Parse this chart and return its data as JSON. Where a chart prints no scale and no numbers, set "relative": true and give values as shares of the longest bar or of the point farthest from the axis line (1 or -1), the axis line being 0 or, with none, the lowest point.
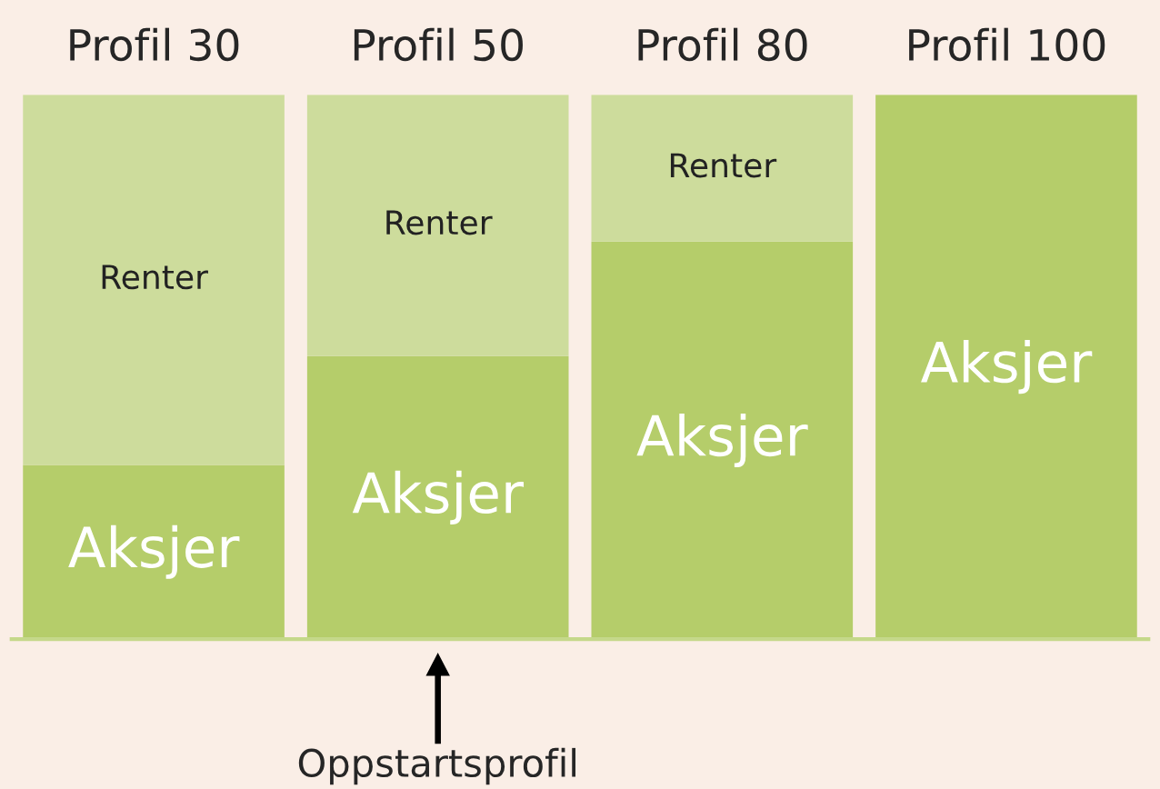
{
  "chart_data": {
    "type": "bar",
    "stacked": true,
    "relative": true,
    "legend": false,
    "grid": false,
    "categories": [
      "Profil 30",
      "Profil 50",
      "Profil 80",
      "Profil 100"
    ],
    "series": [
      {
        "name": "Aksjer",
        "color": "#b5cd6a",
        "values": [
          0.32,
          0.52,
          0.73,
          1.0
        ]
      },
      {
        "name": "Renter",
        "color": "#cddc9c",
        "values": [
          0.68,
          0.48,
          0.27,
          0
        ]
      }
    ],
    "annotations": [
      "Oppstartsprofil"
    ]
  }
}
